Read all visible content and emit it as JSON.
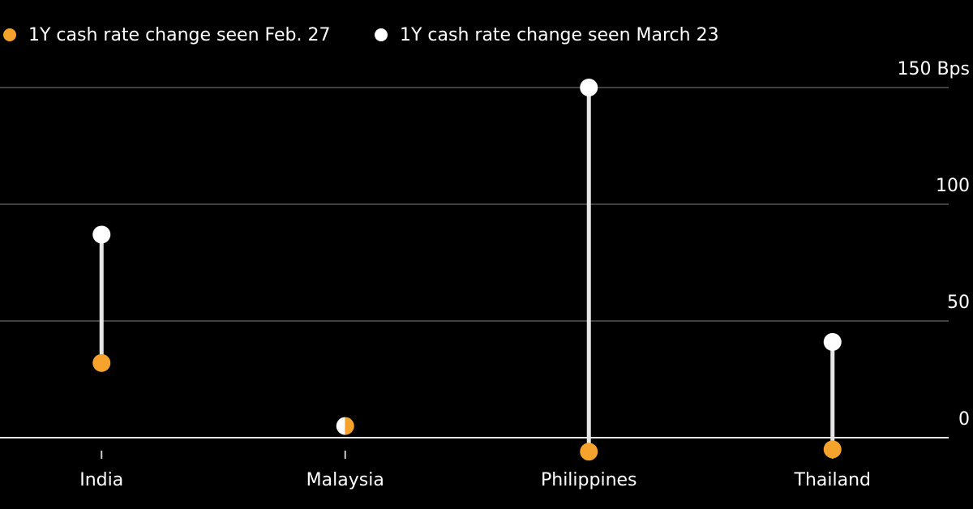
{
  "chart_data": {
    "type": "dumbbell",
    "categories": [
      "India",
      "Malaysia",
      "Philippines",
      "Thailand"
    ],
    "series": [
      {
        "name": "1Y cash rate change seen Feb. 27",
        "color": "#f5a32c",
        "values": [
          32,
          5,
          -6,
          -5
        ]
      },
      {
        "name": "1Y cash rate change seen March 23",
        "color": "#ffffff",
        "values": [
          87,
          5,
          150,
          41
        ]
      }
    ],
    "ylim": [
      -10,
      160
    ],
    "yticks": [
      0,
      50,
      100,
      {
        "value": 150,
        "label": "150 Bps"
      }
    ],
    "grid": true
  }
}
